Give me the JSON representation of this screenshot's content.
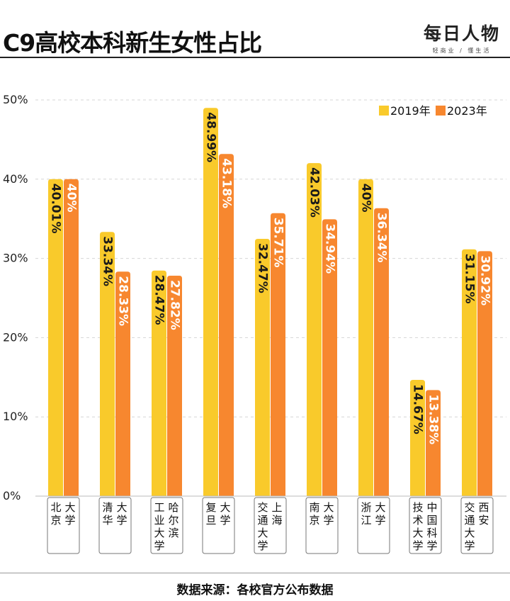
{
  "title": "C9高校本科新生女性占比",
  "brand": {
    "name": "每日人物",
    "tagline": "轻商业 / 懂生活"
  },
  "source": "数据来源：各校官方公布数据",
  "colors": {
    "y2019": "#F9CA2B",
    "y2023": "#F7872F"
  },
  "chart_data": {
    "type": "bar",
    "categories": [
      "北京大学",
      "清华大学",
      "哈尔滨工业大学",
      "复旦大学",
      "上海交通大学",
      "南京大学",
      "浙江大学",
      "中国科学技术大学",
      "西安交通大学"
    ],
    "category_columns": [
      [
        "北京",
        "大学"
      ],
      [
        "清华",
        "大学"
      ],
      [
        "工业大学",
        "哈尔滨"
      ],
      [
        "复旦",
        "大学"
      ],
      [
        "交通大学",
        "上海"
      ],
      [
        "南京",
        "大学"
      ],
      [
        "浙江",
        "大学"
      ],
      [
        "技术大学",
        "中国科学"
      ],
      [
        "交通大学",
        "西安"
      ]
    ],
    "series": [
      {
        "name": "2019年",
        "values": [
          40.01,
          33.34,
          28.47,
          48.99,
          32.47,
          42.03,
          40,
          14.67,
          31.15
        ],
        "labels": [
          "40.01%",
          "33.34%",
          "28.47%",
          "48.99%",
          "32.47%",
          "42.03%",
          "40%",
          "14.67%",
          "31.15%"
        ]
      },
      {
        "name": "2023年",
        "values": [
          40,
          28.33,
          27.82,
          43.18,
          35.71,
          34.94,
          36.34,
          13.38,
          30.92
        ],
        "labels": [
          "40%",
          "28.33%",
          "27.82%",
          "43.18%",
          "35.71%",
          "34.94%",
          "36.34%",
          "13.38%",
          "30.92%"
        ]
      }
    ],
    "yticks": [
      "0%",
      "10%",
      "20%",
      "30%",
      "40%",
      "50%"
    ],
    "ylim": [
      0,
      50
    ],
    "grid": true,
    "legend_position": "top-right"
  }
}
